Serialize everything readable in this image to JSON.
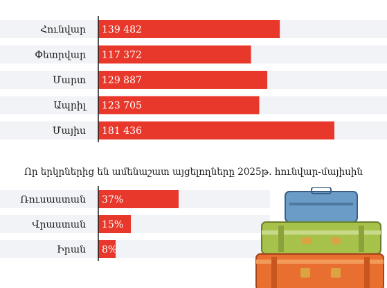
{
  "chart_data": [
    {
      "type": "bar",
      "orientation": "horizontal",
      "categories": [
        "Հունվար",
        "Փետրվար",
        "Մարտ",
        "Ապրիլ",
        "Մայիս"
      ],
      "values": [
        139482,
        117372,
        129887,
        123705,
        181436
      ],
      "value_labels": [
        "139 482",
        "117 372",
        "129 887",
        "123 705",
        "181 436"
      ],
      "bar_color": "#e8382b",
      "row_color": "#f2f3f7"
    },
    {
      "type": "bar",
      "orientation": "horizontal",
      "title": "Որ երկրներից են ամենաշատ այցելողները 2025թ. հունվար-մայիսին",
      "categories": [
        "Ռուսաստան",
        "Վրաստան",
        "Իրան"
      ],
      "values": [
        37,
        15,
        8
      ],
      "value_labels": [
        "37%",
        "15%",
        "8%"
      ],
      "bar_color": "#e8382b",
      "row_color": "#f2f3f7"
    }
  ],
  "illustration": {
    "name": "luggage-stack-icon",
    "colors": [
      "#6b9cc7",
      "#a6c24a",
      "#e86f2f"
    ]
  }
}
